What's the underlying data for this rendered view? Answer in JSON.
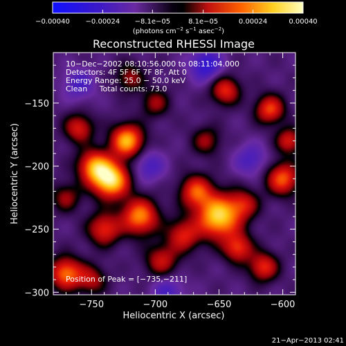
{
  "chart_data": {
    "type": "heatmap",
    "title": "Reconstructed RHESSI Image",
    "xlabel": "Heliocentric X (arcsec)",
    "ylabel": "Heliocentric Y (arcsec)",
    "xlim": [
      -780,
      -590
    ],
    "ylim": [
      -302,
      -110
    ],
    "xticks": [
      -750,
      -700,
      -650,
      -600
    ],
    "xtick_labels": [
      "−750",
      "−700",
      "−650",
      "−600"
    ],
    "yticks": [
      -150,
      -200,
      -250,
      -300
    ],
    "ytick_labels": [
      "−150",
      "−200",
      "−250",
      "−300"
    ],
    "colorbar": {
      "range": [
        -0.0004,
        0.0004
      ],
      "tick_values": [
        -0.0004,
        -0.00024,
        -8.1e-05,
        8.1e-05,
        0.00024,
        0.0004
      ],
      "tick_labels": [
        "−0.00040",
        "−0.00024",
        "−8.1e−05",
        "8.1e−05",
        "0.00024",
        "0.00040"
      ],
      "units_prefix": "(photons cm",
      "units_exp1": "−2",
      "units_mid": " s",
      "units_exp2": "−1",
      "units_mid2": " asec",
      "units_exp3": "−2",
      "units_suffix": ")"
    },
    "annotations": [
      "10−Dec−2002 08:10:56.000 to 08:11:04.000",
      "Detectors: 4F 5F 6F 7F 8F, Att 0",
      "Energy Range: 25.0 − 50.0 keV",
      "Clean     Total counts: 73.0"
    ],
    "peak_label": "Position of Peak = [−735,−211]",
    "peak": [
      -735,
      -211
    ],
    "sources": [
      {
        "x": -735,
        "y": -211,
        "amp": 1.0,
        "sigma": 10
      },
      {
        "x": -722,
        "y": -180,
        "amp": 0.85,
        "sigma": 9
      },
      {
        "x": -748,
        "y": -200,
        "amp": 0.7,
        "sigma": 9
      },
      {
        "x": -712,
        "y": -240,
        "amp": 0.75,
        "sigma": 10
      },
      {
        "x": -740,
        "y": -250,
        "amp": 0.55,
        "sigma": 9
      },
      {
        "x": -760,
        "y": -170,
        "amp": 0.5,
        "sigma": 8
      },
      {
        "x": -650,
        "y": -240,
        "amp": 0.95,
        "sigma": 12
      },
      {
        "x": -668,
        "y": -220,
        "amp": 0.6,
        "sigma": 9
      },
      {
        "x": -635,
        "y": -265,
        "amp": 0.55,
        "sigma": 8
      },
      {
        "x": -678,
        "y": -255,
        "amp": 0.5,
        "sigma": 9
      },
      {
        "x": -645,
        "y": -140,
        "amp": 0.55,
        "sigma": 8
      },
      {
        "x": -610,
        "y": -155,
        "amp": 0.6,
        "sigma": 8
      },
      {
        "x": -600,
        "y": -210,
        "amp": 0.65,
        "sigma": 9
      },
      {
        "x": -595,
        "y": -180,
        "amp": 0.5,
        "sigma": 7
      },
      {
        "x": -615,
        "y": -280,
        "amp": 0.55,
        "sigma": 8
      },
      {
        "x": -770,
        "y": -285,
        "amp": 0.7,
        "sigma": 9
      },
      {
        "x": -750,
        "y": -290,
        "amp": 0.4,
        "sigma": 8
      },
      {
        "x": -695,
        "y": -275,
        "amp": 0.45,
        "sigma": 9
      },
      {
        "x": -700,
        "y": -150,
        "amp": 0.35,
        "sigma": 8
      },
      {
        "x": -660,
        "y": -180,
        "amp": 0.35,
        "sigma": 8
      },
      {
        "x": -630,
        "y": -230,
        "amp": 0.4,
        "sigma": 8
      },
      {
        "x": -720,
        "y": -130,
        "amp": 0.35,
        "sigma": 8
      },
      {
        "x": -770,
        "y": -225,
        "amp": 0.35,
        "sigma": 8
      }
    ],
    "negative_sources": [
      {
        "x": -660,
        "y": -120,
        "amp": 0.45,
        "sigma": 9
      },
      {
        "x": -760,
        "y": -135,
        "amp": 0.3,
        "sigma": 9
      },
      {
        "x": -705,
        "y": -200,
        "amp": 0.3,
        "sigma": 9
      },
      {
        "x": -625,
        "y": -195,
        "amp": 0.3,
        "sigma": 9
      },
      {
        "x": -690,
        "y": -300,
        "amp": 0.3,
        "sigma": 9
      }
    ]
  },
  "footer": {
    "timestamp": "21−Apr−2013 02:41"
  },
  "colors": {
    "background": "#000000",
    "foreground": "#ffffff",
    "colormap": [
      "#0000ff",
      "#3020c0",
      "#6a2aa0",
      "#000000",
      "#e01010",
      "#ff8000",
      "#ffff60",
      "#ffffff"
    ]
  }
}
